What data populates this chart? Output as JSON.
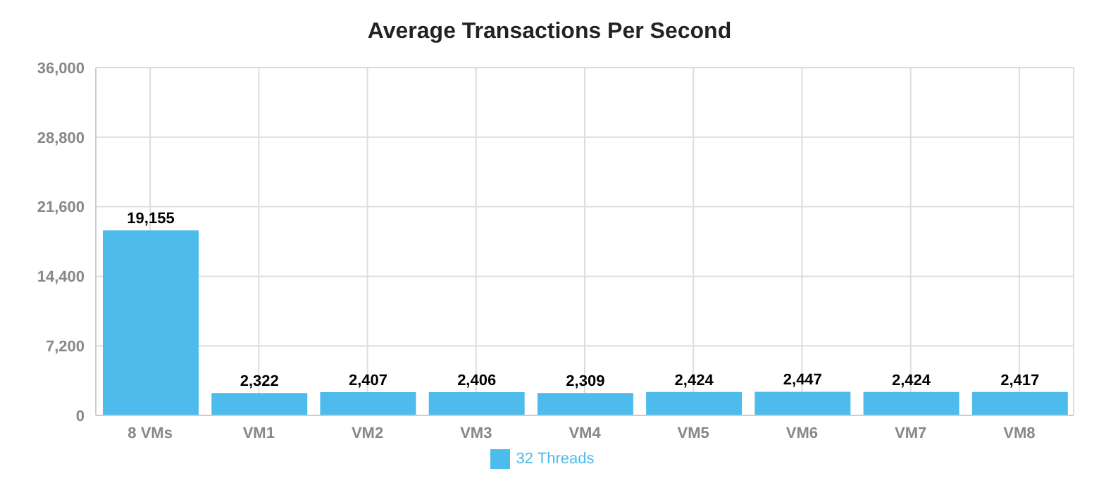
{
  "chart_data": {
    "type": "bar",
    "title": "Average Transactions Per Second",
    "categories": [
      "8 VMs",
      "VM1",
      "VM2",
      "VM3",
      "VM4",
      "VM5",
      "VM6",
      "VM7",
      "VM8"
    ],
    "series": [
      {
        "name": "32 Threads",
        "color": "#4dbbeb",
        "values": [
          19155,
          2322,
          2407,
          2406,
          2309,
          2424,
          2447,
          2424,
          2417
        ],
        "value_labels": [
          "19,155",
          "2,322",
          "2,407",
          "2,406",
          "2,309",
          "2,424",
          "2,447",
          "2,424",
          "2,417"
        ]
      }
    ],
    "ylim": [
      0,
      36000
    ],
    "yticks": [
      0,
      {
        "value": 7200,
        "label": "7,200"
      },
      {
        "value": 14400,
        "label": "14,400"
      },
      {
        "value": 21600,
        "label": "21,600"
      },
      {
        "value": 28800,
        "label": "28,800"
      },
      {
        "value": 36000,
        "label": "36,000"
      }
    ],
    "grid": true,
    "legend": "bottom"
  }
}
